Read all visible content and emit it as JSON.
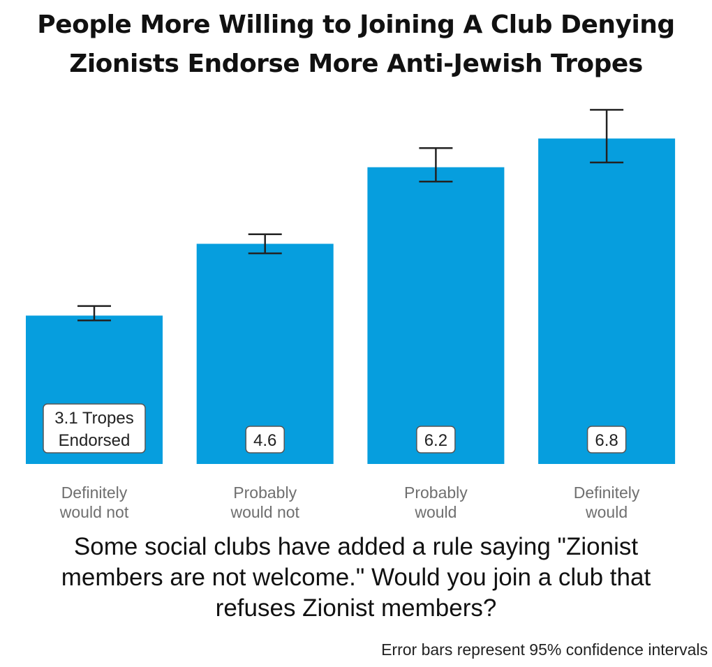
{
  "chart_data": {
    "type": "bar",
    "title_lines": [
      "People More Willing to Joining A Club Denying",
      "Zionists Endorse More Anti-Jewish Tropes"
    ],
    "categories": [
      [
        "Definitely",
        "would not"
      ],
      [
        "Probably",
        "would not"
      ],
      [
        "Probably",
        "would"
      ],
      [
        "Definitely",
        "would"
      ]
    ],
    "values": [
      3.1,
      4.6,
      6.2,
      6.8
    ],
    "ci_low": [
      3.0,
      4.4,
      5.9,
      6.3
    ],
    "ci_high": [
      3.3,
      4.8,
      6.6,
      7.4
    ],
    "data_labels": [
      [
        "3.1 Tropes",
        "Endorsed"
      ],
      [
        "4.6"
      ],
      [
        "6.2"
      ],
      [
        "6.8"
      ]
    ],
    "ylim": [
      0,
      7.7
    ],
    "grid": false,
    "bar_color": "#069ede",
    "question_lines": [
      "Some social clubs have added a rule saying \"Zionist",
      "members are not welcome.\" Would you join a club that",
      "refuses Zionist members?"
    ],
    "footnote": "Error bars represent 95% confidence intervals"
  }
}
